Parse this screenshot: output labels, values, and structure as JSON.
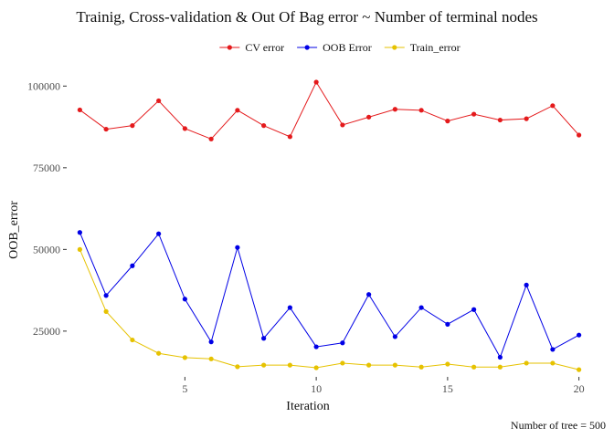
{
  "chart_data": {
    "type": "line",
    "title": "Trainig, Cross-validation & Out Of Bag error ~ Number of terminal nodes",
    "xlabel": "Iteration",
    "ylabel": "OOB_error",
    "caption": "Number of tree = 500",
    "legend_position": "top",
    "grid": false,
    "xlim": [
      0.5,
      20.5
    ],
    "ylim": [
      11000,
      104000
    ],
    "x_ticks": [
      5,
      10,
      15,
      20
    ],
    "x_tick_labels": [
      "5",
      "10",
      "15",
      "20"
    ],
    "y_ticks": [
      25000,
      50000,
      75000,
      100000
    ],
    "y_tick_labels": [
      "25000",
      "50000",
      "75000",
      "100000"
    ],
    "x": [
      1,
      2,
      3,
      4,
      5,
      6,
      7,
      8,
      9,
      10,
      11,
      12,
      13,
      14,
      15,
      16,
      17,
      18,
      19,
      20
    ],
    "series": [
      {
        "name": "CV error",
        "color": "#e41a1c",
        "values": [
          92700,
          86800,
          87900,
          95500,
          87000,
          83800,
          92600,
          87900,
          84500,
          101200,
          88100,
          90500,
          92900,
          92600,
          89300,
          91400,
          89600,
          90000,
          94000,
          85000
        ]
      },
      {
        "name": "OOB Error",
        "color": "#0000e6",
        "values": [
          55200,
          35900,
          45000,
          54800,
          34800,
          21700,
          50600,
          22800,
          32200,
          20200,
          21400,
          36200,
          23300,
          32200,
          27100,
          31600,
          17000,
          39100,
          19400,
          23800
        ]
      },
      {
        "name": "Train_error",
        "color": "#e6c200",
        "values": [
          50000,
          31000,
          22300,
          18200,
          16900,
          16500,
          14100,
          14600,
          14600,
          13800,
          15200,
          14600,
          14600,
          14000,
          14900,
          14000,
          14000,
          15200,
          15200,
          13200
        ]
      }
    ]
  }
}
